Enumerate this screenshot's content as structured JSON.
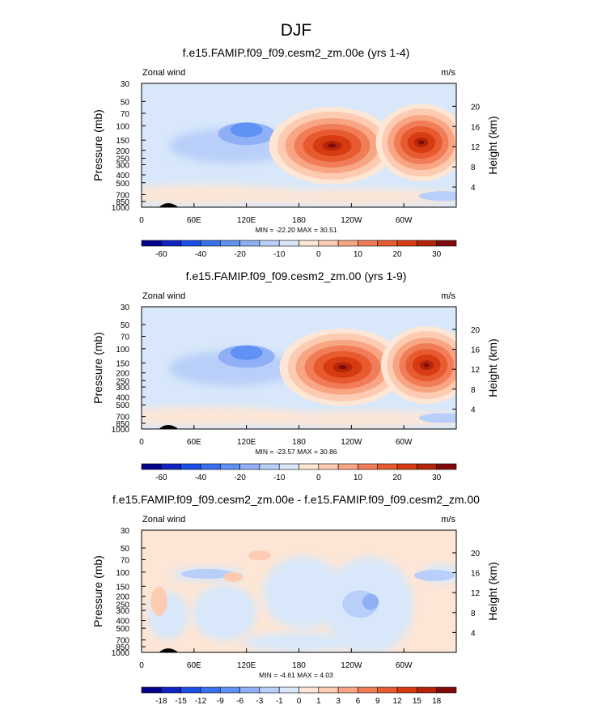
{
  "page_title": "DJF",
  "chart_data": [
    {
      "type": "heatmap",
      "title": "f.e15.FAMIP.f09_f09.cesm2_zm.00e (yrs 1-4)",
      "left_label": "Zonal wind",
      "right_label": "m/s",
      "ylabel": "Pressure (mb)",
      "ylabel_right": "Height (km)",
      "xlabel": "",
      "x_ticks": [
        "0",
        "60E",
        "120E",
        "180",
        "120W",
        "60W"
      ],
      "y_ticks": [
        "30",
        "50",
        "70",
        "100",
        "150",
        "200",
        "250",
        "300",
        "400",
        "500",
        "700",
        "850",
        "1000"
      ],
      "y_ticks_right": [
        "20",
        "16",
        "12",
        "8",
        "4"
      ],
      "stats": "MIN = -22.20  MAX =  30.51",
      "min": -22.2,
      "max": 30.51,
      "colorbar_labels": [
        "-60",
        "-40",
        "-20",
        "-10",
        "0",
        "10",
        "20",
        "30"
      ],
      "color_levels": 16,
      "features": [
        {
          "name": "eastern-jet-core",
          "x_deg": 218,
          "p_mb": 175,
          "value": 30.5
        },
        {
          "name": "western-jet-core",
          "x_deg": 320,
          "p_mb": 160,
          "value": 28
        },
        {
          "name": "easterly-core",
          "x_deg": 120,
          "p_mb": 110,
          "value": -22.2
        }
      ]
    },
    {
      "type": "heatmap",
      "title": "f.e15.FAMIP.f09_f09.cesm2_zm.00 (yrs 1-9)",
      "left_label": "Zonal wind",
      "right_label": "m/s",
      "ylabel": "Pressure (mb)",
      "ylabel_right": "Height (km)",
      "xlabel": "",
      "x_ticks": [
        "0",
        "60E",
        "120E",
        "180",
        "120W",
        "60W"
      ],
      "y_ticks": [
        "30",
        "50",
        "70",
        "100",
        "150",
        "200",
        "250",
        "300",
        "400",
        "500",
        "700",
        "850",
        "1000"
      ],
      "y_ticks_right": [
        "20",
        "16",
        "12",
        "8",
        "4"
      ],
      "stats": "MIN = -23.57  MAX =  30.86",
      "min": -23.57,
      "max": 30.86,
      "colorbar_labels": [
        "-60",
        "-40",
        "-20",
        "-10",
        "0",
        "10",
        "20",
        "30"
      ],
      "color_levels": 16,
      "features": [
        {
          "name": "eastern-jet-core",
          "x_deg": 230,
          "p_mb": 170,
          "value": 30.9
        },
        {
          "name": "western-jet-core",
          "x_deg": 326,
          "p_mb": 160,
          "value": 29
        },
        {
          "name": "easterly-core",
          "x_deg": 120,
          "p_mb": 110,
          "value": -23.6
        }
      ]
    },
    {
      "type": "heatmap",
      "title": "f.e15.FAMIP.f09_f09.cesm2_zm.00e - f.e15.FAMIP.f09_f09.cesm2_zm.00",
      "left_label": "Zonal wind",
      "right_label": "m/s",
      "ylabel": "Pressure (mb)",
      "ylabel_right": "Height (km)",
      "xlabel": "",
      "x_ticks": [
        "0",
        "60E",
        "120E",
        "180",
        "120W",
        "60W"
      ],
      "y_ticks": [
        "30",
        "50",
        "70",
        "100",
        "150",
        "200",
        "250",
        "300",
        "400",
        "500",
        "700",
        "850",
        "1000"
      ],
      "y_ticks_right": [
        "20",
        "16",
        "12",
        "8",
        "4"
      ],
      "stats": "MIN = -4.61  MAX =  4.03",
      "min": -4.61,
      "max": 4.03,
      "colorbar_labels": [
        "-18",
        "-15",
        "-12",
        "-9",
        "-6",
        "-3",
        "-1",
        "0",
        "1",
        "3",
        "6",
        "9",
        "12",
        "15",
        "18"
      ],
      "color_levels": 16,
      "features": [
        {
          "name": "negative-core",
          "x_deg": 258,
          "p_mb": 230,
          "value": -4.6
        },
        {
          "name": "positive-upper-band",
          "x_deg": 180,
          "p_mb": 35,
          "value": 1
        }
      ]
    }
  ]
}
